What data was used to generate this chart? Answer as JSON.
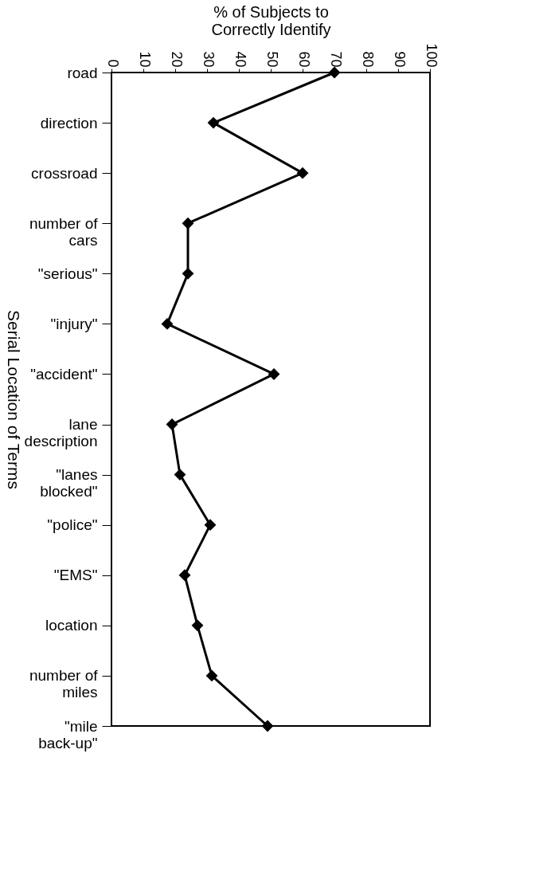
{
  "chart_data": {
    "type": "line",
    "orientation": "horizontal",
    "xlabel": "% of Subjects to Correctly Identify",
    "ylabel": "Serial Location of Terms",
    "categories": [
      "road",
      "direction",
      "crossroad",
      "number of\ncars",
      "\"serious\"",
      "\"injury\"",
      "\"accident\"",
      "lane\ndescription",
      "\"lanes\nblocked\"",
      "\"police\"",
      "\"EMS\"",
      "location",
      "number of\nmiles",
      "\"mile\nback-up\""
    ],
    "values": [
      70,
      32,
      60,
      24,
      24,
      17.5,
      51,
      19,
      21.5,
      31,
      23,
      27,
      31.5,
      49
    ],
    "color": "#000000",
    "marker": "diamond",
    "line_style": "solid",
    "xlim": [
      0,
      100
    ],
    "xticks": [
      0,
      10,
      20,
      30,
      40,
      50,
      60,
      70,
      80,
      90,
      100
    ],
    "grid": false
  }
}
